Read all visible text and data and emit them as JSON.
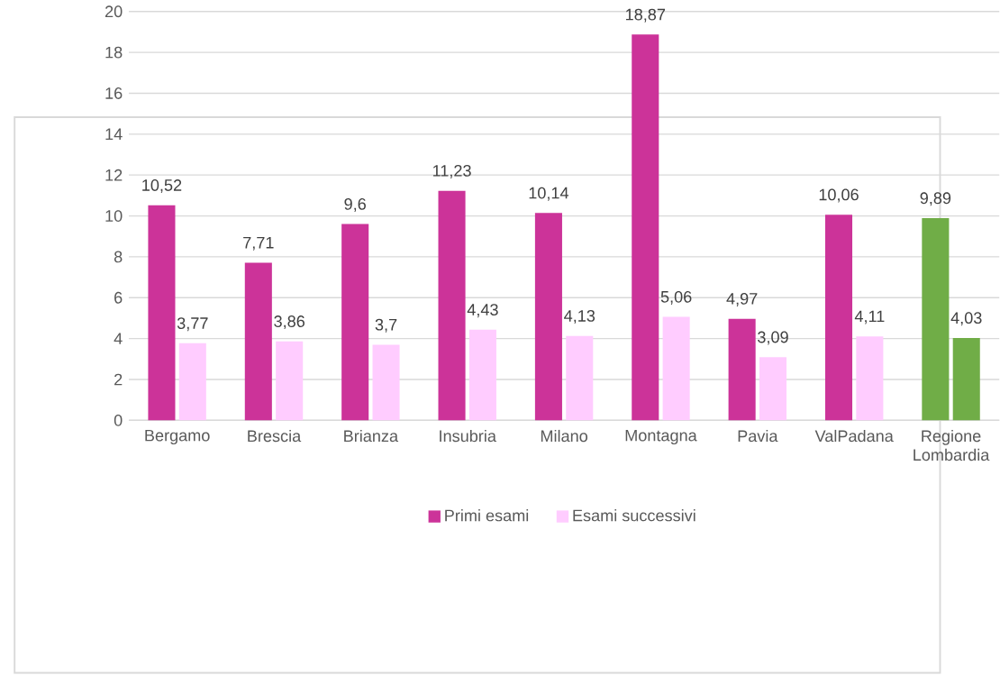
{
  "chart_data": {
    "type": "bar",
    "categories": [
      "Bergamo",
      "Brescia",
      "Brianza",
      "Insubria",
      "Milano",
      "Montagna",
      "Pavia",
      "ValPadana",
      "Regione Lombardia"
    ],
    "series": [
      {
        "name": "Primi esami",
        "color": "#cc3399",
        "colors": [
          "#cc3399",
          "#cc3399",
          "#cc3399",
          "#cc3399",
          "#cc3399",
          "#cc3399",
          "#cc3399",
          "#cc3399",
          "#70ad47"
        ],
        "values": [
          10.52,
          7.71,
          9.6,
          11.23,
          10.14,
          18.87,
          4.97,
          10.06,
          9.89
        ],
        "value_labels": [
          "10,52",
          "7,71",
          "9,6",
          "11,23",
          "10,14",
          "18,87",
          "4,97",
          "10,06",
          "9,89"
        ]
      },
      {
        "name": "Esami successivi",
        "color": "#ffccff",
        "colors": [
          "#ffccff",
          "#ffccff",
          "#ffccff",
          "#ffccff",
          "#ffccff",
          "#ffccff",
          "#ffccff",
          "#ffccff",
          "#70ad47"
        ],
        "values": [
          3.77,
          3.86,
          3.7,
          4.43,
          4.13,
          5.06,
          3.09,
          4.11,
          4.03
        ],
        "value_labels": [
          "3,77",
          "3,86",
          "3,7",
          "4,43",
          "4,13",
          "5,06",
          "3,09",
          "4,11",
          "4,03"
        ]
      }
    ],
    "ylim": [
      0,
      20
    ],
    "yticks": [
      0,
      2,
      4,
      6,
      8,
      10,
      12,
      14,
      16,
      18,
      20
    ],
    "grid": "y",
    "legend": "bottom"
  }
}
